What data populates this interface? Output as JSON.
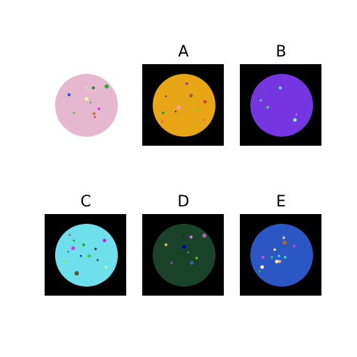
{
  "panels": [
    {
      "id": "reference",
      "label": "",
      "background": "#ffffff",
      "disk_color": "#e6b8d0",
      "dots": [
        {
          "c": "#2e8b2e",
          "r": 0.03
        },
        {
          "c": "#3aa03a",
          "r": 0.035
        },
        {
          "c": "#2255dd",
          "r": 0.04
        },
        {
          "c": "#ffffaa",
          "r": 0.035
        },
        {
          "c": "#e020e0",
          "r": 0.03
        },
        {
          "c": "#55cc55",
          "r": 0.025
        },
        {
          "c": "#cc8855",
          "r": 0.035
        },
        {
          "c": "#cc2222",
          "r": 0.02
        },
        {
          "c": "#33aa33",
          "r": 0.02
        },
        {
          "c": "#aaaaaa",
          "r": 0.02
        }
      ]
    },
    {
      "id": "A",
      "label": "A",
      "background": "#000000",
      "disk_color": "#e8a516",
      "dots": [
        {
          "c": "#a020c0",
          "r": 0.03
        },
        {
          "c": "#886633",
          "r": 0.035
        },
        {
          "c": "#cc4422",
          "r": 0.035
        },
        {
          "c": "#ff99aa",
          "r": 0.04
        },
        {
          "c": "#22aa22",
          "r": 0.03
        },
        {
          "c": "#88cc22",
          "r": 0.03
        },
        {
          "c": "#ff6655",
          "r": 0.03
        },
        {
          "c": "#225522",
          "r": 0.02
        },
        {
          "c": "#aa4488",
          "r": 0.02
        }
      ]
    },
    {
      "id": "B",
      "label": "B",
      "background": "#000000",
      "disk_color": "#7535e0",
      "dots": [
        {
          "c": "#55dddd",
          "r": 0.03
        },
        {
          "c": "#44cc88",
          "r": 0.03
        },
        {
          "c": "#88ffff",
          "r": 0.035
        },
        {
          "c": "#cc88dd",
          "r": 0.02
        },
        {
          "c": "#66ccee",
          "r": 0.025
        }
      ]
    },
    {
      "id": "C",
      "label": "C",
      "background": "#000000",
      "disk_color": "#6ee0ec",
      "dots": [
        {
          "c": "#dd33dd",
          "r": 0.04
        },
        {
          "c": "#22aa22",
          "r": 0.035
        },
        {
          "c": "#5a5a3a",
          "r": 0.05
        },
        {
          "c": "#cc22cc",
          "r": 0.04
        },
        {
          "c": "#222222",
          "r": 0.025
        },
        {
          "c": "#44cc44",
          "r": 0.04
        },
        {
          "c": "#2233aa",
          "r": 0.03
        },
        {
          "c": "#ffff66",
          "r": 0.025
        },
        {
          "c": "#88dd88",
          "r": 0.03
        }
      ]
    },
    {
      "id": "D",
      "label": "D",
      "background": "#000000",
      "disk_color": "#1a4228",
      "dots": [
        {
          "c": "#cc77ee",
          "r": 0.035
        },
        {
          "c": "#dd99cc",
          "r": 0.04
        },
        {
          "c": "#0000aa",
          "r": 0.04
        },
        {
          "c": "#ddbb33",
          "r": 0.03
        },
        {
          "c": "#33dd33",
          "r": 0.03
        },
        {
          "c": "#336699",
          "r": 0.04
        },
        {
          "c": "#aa44cc",
          "r": 0.025
        },
        {
          "c": "#222233",
          "r": 0.025
        }
      ]
    },
    {
      "id": "E",
      "label": "E",
      "background": "#000000",
      "disk_color": "#2a57c4",
      "dots": [
        {
          "c": "#aa6633",
          "r": 0.045
        },
        {
          "c": "#ddbbaa",
          "r": 0.035
        },
        {
          "c": "#ffffff",
          "r": 0.035
        },
        {
          "c": "#33dd99",
          "r": 0.035
        },
        {
          "c": "#dd44dd",
          "r": 0.035
        },
        {
          "c": "#cc44cc",
          "r": 0.03
        },
        {
          "c": "#ffee99",
          "r": 0.035
        },
        {
          "c": "#44ccee",
          "r": 0.03
        },
        {
          "c": "#22aa55",
          "r": 0.025
        }
      ]
    }
  ]
}
